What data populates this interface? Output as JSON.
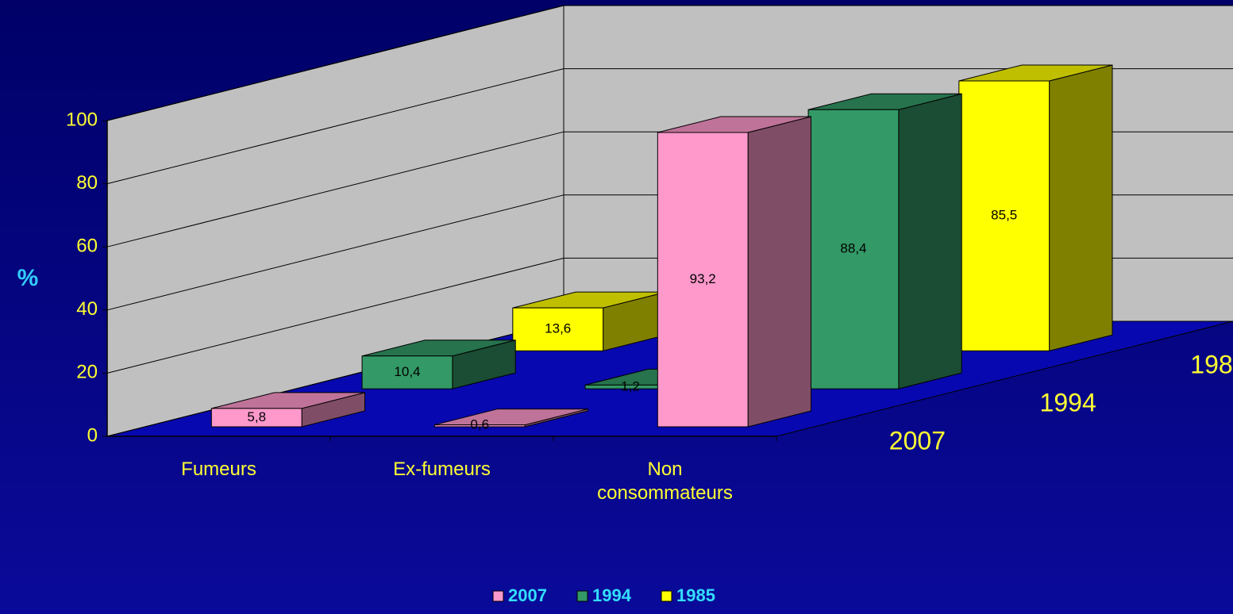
{
  "chart_data": {
    "type": "bar3d",
    "y_label": "%",
    "categories": [
      "Fumeurs",
      "Ex-fumeurs",
      "Non consommateurs"
    ],
    "series": [
      {
        "name": "2007",
        "color": "#ff99cc",
        "values": [
          5.8,
          0.6,
          93.2
        ],
        "value_labels": [
          "5,8",
          "0,6",
          "93,2"
        ]
      },
      {
        "name": "1994",
        "color": "#339966",
        "values": [
          10.4,
          1.2,
          88.4
        ],
        "value_labels": [
          "10,4",
          "1,2",
          "88,4"
        ]
      },
      {
        "name": "1985",
        "color": "#ffff00",
        "values": [
          13.6,
          0.9,
          85.5
        ],
        "value_labels": [
          "13,6",
          null,
          "85,5"
        ]
      }
    ],
    "ylim": [
      0,
      100
    ],
    "yticks": [
      0,
      20,
      40,
      60,
      80,
      100
    ],
    "grid": true,
    "legend": "bottom"
  }
}
